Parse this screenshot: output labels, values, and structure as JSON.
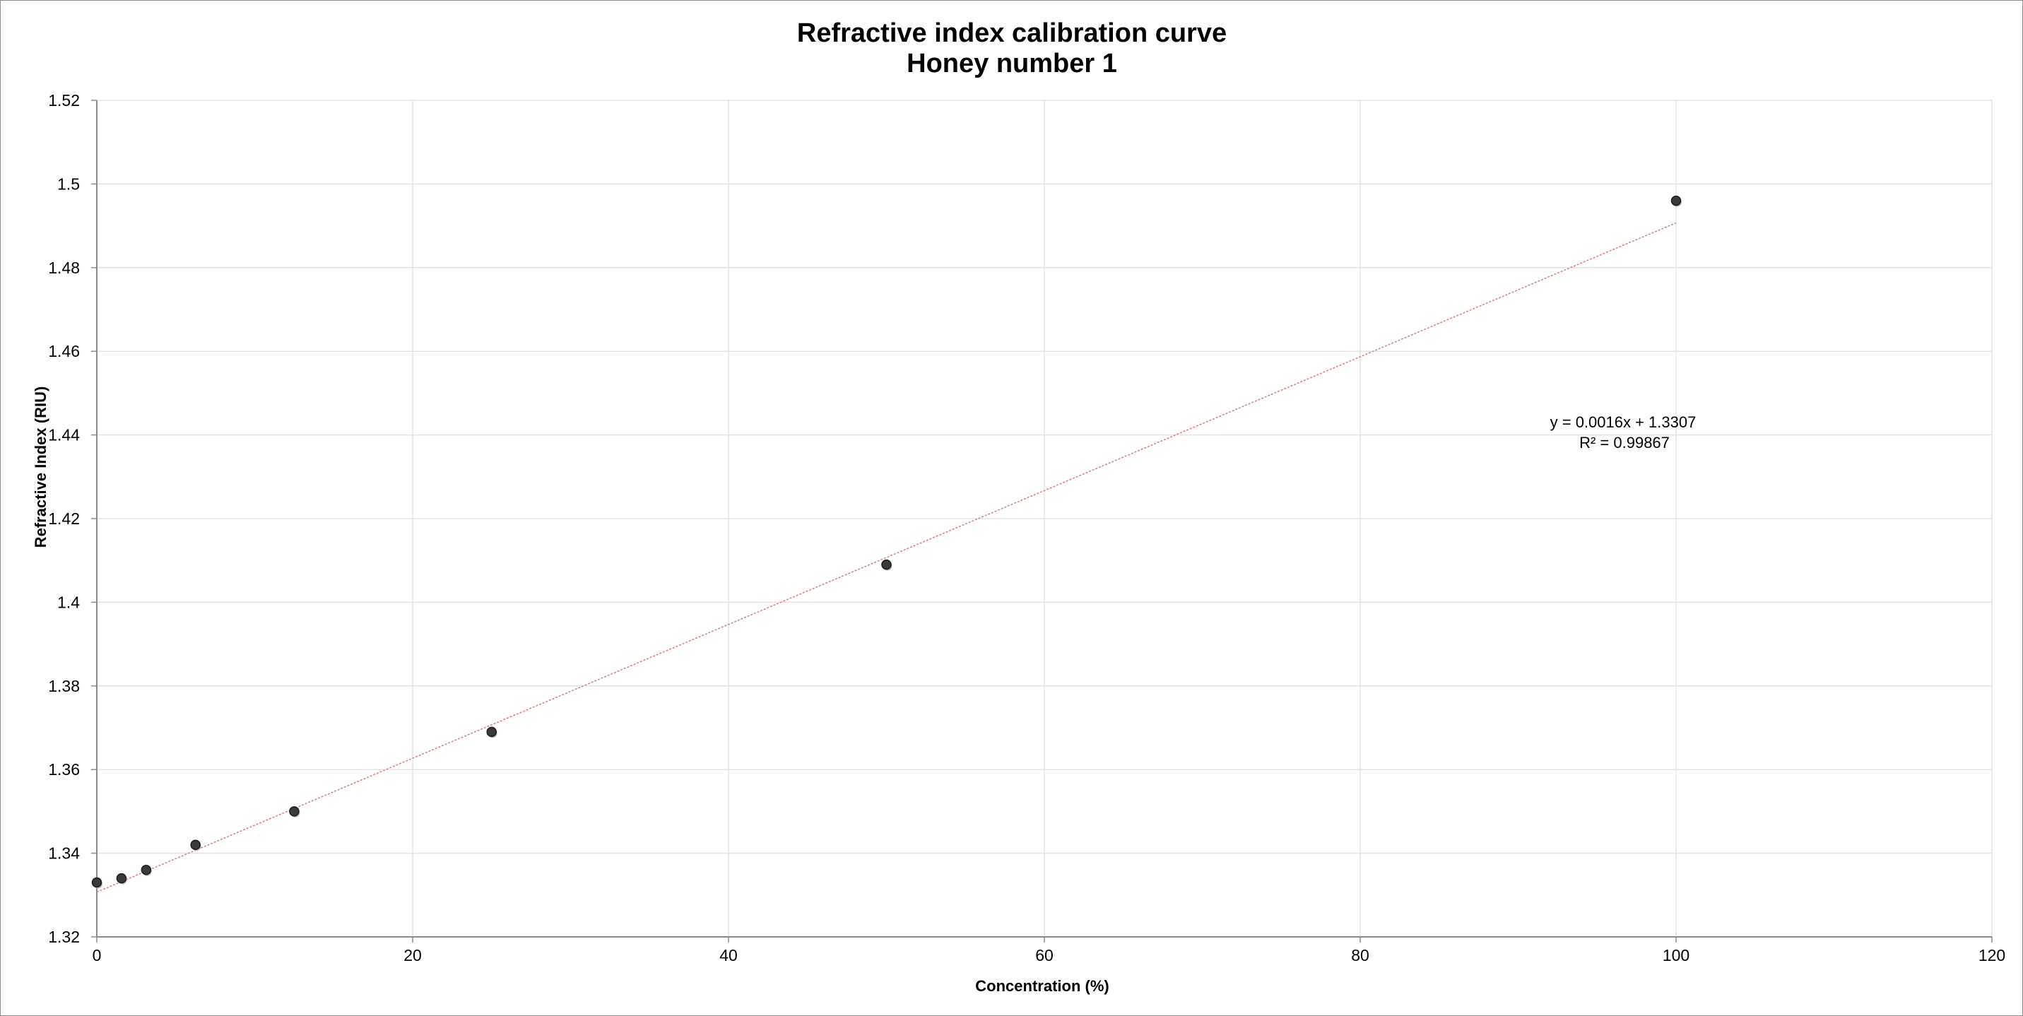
{
  "chart_data": {
    "type": "scatter",
    "title": "Refractive index calibration curve",
    "subtitle": "Honey number 1",
    "xlabel": "Concentration (%)",
    "ylabel": "Refractive Index (RIU)",
    "xlim": [
      0,
      120
    ],
    "ylim": [
      1.32,
      1.52
    ],
    "x_ticks": [
      "0",
      "20",
      "40",
      "60",
      "80",
      "100",
      "120"
    ],
    "y_ticks": [
      "1.32",
      "1.34",
      "1.36",
      "1.38",
      "1.4",
      "1.42",
      "1.44",
      "1.46",
      "1.48",
      "1.5",
      "1.52"
    ],
    "grid": true,
    "legend": "none",
    "series": [
      {
        "x": [
          0,
          1.5625,
          3.125,
          6.25,
          12.5,
          25,
          50,
          100
        ],
        "y": [
          1.333,
          1.334,
          1.336,
          1.342,
          1.35,
          1.369,
          1.409,
          1.496
        ],
        "marker_color": "#3a3a3a"
      }
    ],
    "trendline": {
      "type": "linear",
      "slope": 0.0016,
      "intercept": 1.3307,
      "x_range": [
        0,
        100
      ],
      "color": "#e07a7a",
      "equation_label": "y = 0.0016x + 1.3307",
      "r2_label": "R² = 0.99867"
    }
  }
}
